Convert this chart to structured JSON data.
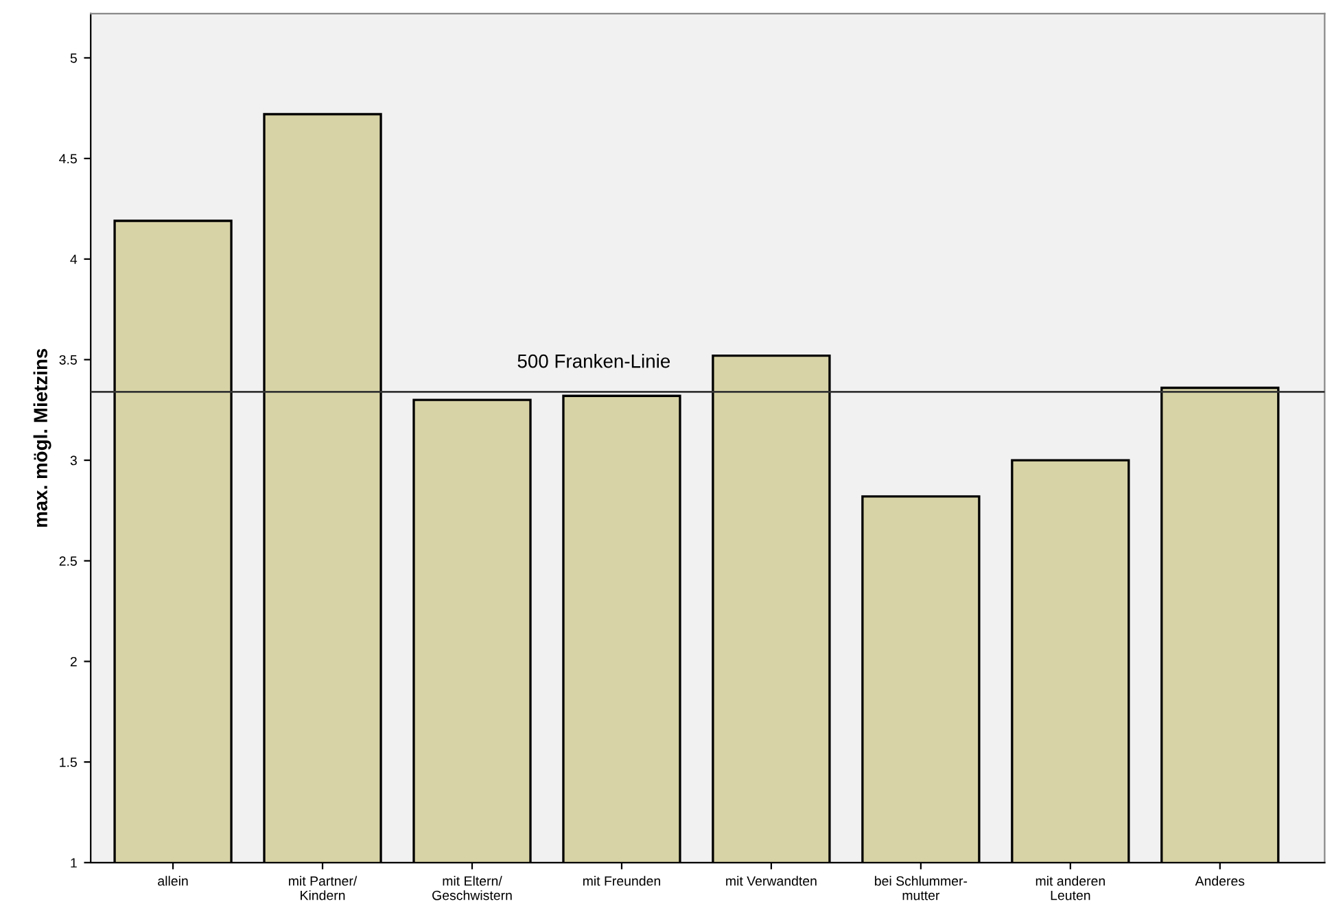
{
  "chart_data": {
    "type": "bar",
    "ylabel": "max. mögl. Mietzins",
    "categories": [
      "allein",
      "mit Partner/\nKindern",
      "mit Eltern/\nGeschwistern",
      "mit Freunden",
      "mit Verwandten",
      "bei Schlummer-\nmutter",
      "mit anderen\nLeuten",
      "Anderes"
    ],
    "values": [
      4.19,
      4.72,
      3.3,
      3.32,
      3.52,
      2.82,
      3.0,
      3.36
    ],
    "color": "#d8d3a6",
    "ylim": [
      1,
      5.22
    ],
    "yticks": [
      1,
      1.5,
      2,
      2.5,
      3,
      3.5,
      4,
      4.5,
      5
    ],
    "ref_lines": [
      {
        "axis": "y",
        "value": 3.34,
        "label": "500 Franken-Linie",
        "color": "#333333"
      }
    ],
    "grid": false,
    "legend": false
  }
}
